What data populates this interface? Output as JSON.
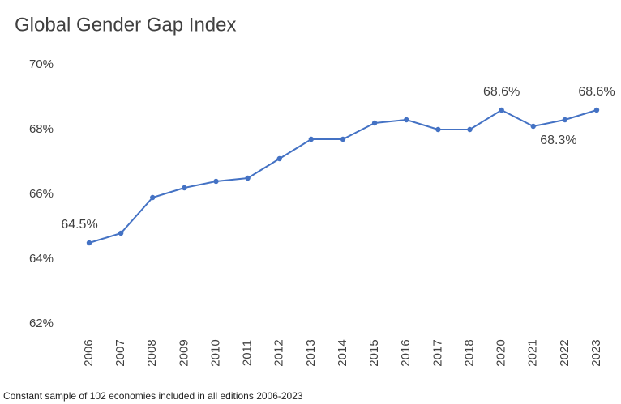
{
  "chart_data": {
    "type": "line",
    "title": "Global Gender Gap Index",
    "footnote": "Constant sample of 102 economies included in all editions 2006-2023",
    "categories": [
      "2006",
      "2007",
      "2008",
      "2009",
      "2010",
      "2011",
      "2012",
      "2013",
      "2014",
      "2015",
      "2016",
      "2017",
      "2018",
      "2020",
      "2021",
      "2022",
      "2023"
    ],
    "series": [
      {
        "name": "Global Gender Gap Index",
        "color": "#4472c4",
        "values": [
          64.5,
          64.8,
          65.9,
          66.2,
          66.4,
          66.5,
          67.1,
          67.7,
          67.7,
          68.2,
          68.3,
          68.0,
          68.0,
          68.6,
          68.1,
          68.3,
          68.6
        ],
        "value_labels": [
          "64.5%",
          null,
          null,
          null,
          null,
          null,
          null,
          null,
          null,
          null,
          null,
          null,
          null,
          "68.6%",
          null,
          "68.3%",
          "68.6%"
        ]
      }
    ],
    "ylim": [
      62,
      70
    ],
    "yticks": [
      {
        "value": 62,
        "label": "62%"
      },
      {
        "value": 64,
        "label": "64%"
      },
      {
        "value": 66,
        "label": "66%"
      },
      {
        "value": 68,
        "label": "68%"
      },
      {
        "value": 70,
        "label": "70%"
      }
    ],
    "grid": false
  }
}
